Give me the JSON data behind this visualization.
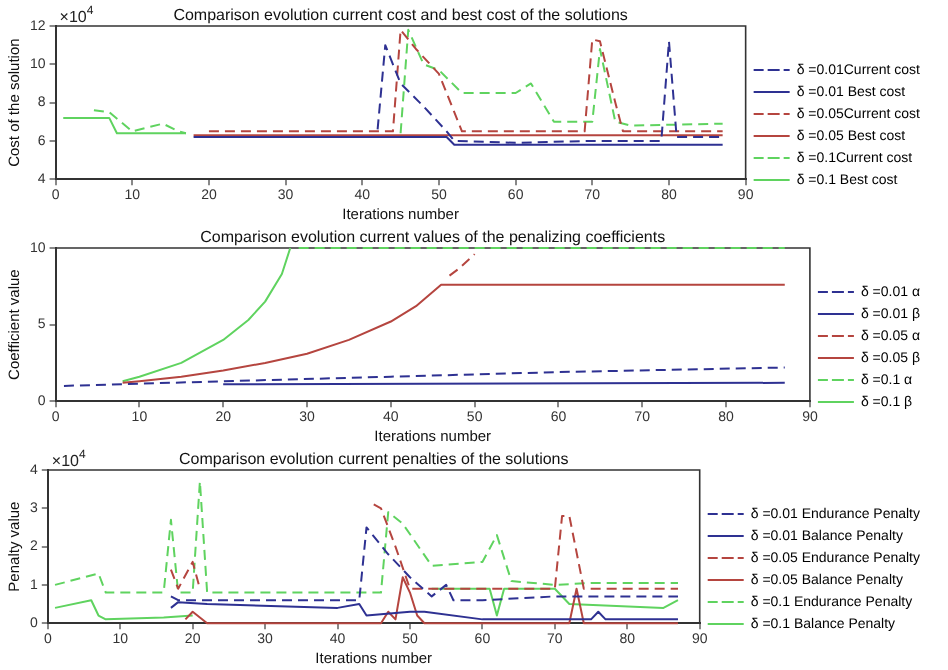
{
  "chart_data": [
    {
      "type": "line",
      "title": "Comparison evolution current cost and best cost of the solutions",
      "xlabel": "Iterations number",
      "ylabel": "Cost of the solution",
      "annotations": [
        "×10$^{4}$"
      ],
      "xlim": [
        0,
        90
      ],
      "xticks": [
        0,
        10,
        20,
        30,
        40,
        50,
        60,
        70,
        80,
        90
      ],
      "ylim": [
        4,
        12
      ],
      "yticks": [
        4,
        6,
        8,
        10,
        12
      ],
      "grid": false,
      "legend": "right",
      "marker": "none",
      "series": [
        {
          "name": "δ =0.01Current cost",
          "color": "#2e3192",
          "line_style": "dashed",
          "x": [
            42,
            43,
            45,
            48,
            51,
            52,
            60,
            70,
            79,
            80,
            81,
            87
          ],
          "values": [
            6.6,
            11.0,
            9.0,
            7.8,
            6.5,
            6.0,
            5.9,
            6.0,
            6.0,
            11.2,
            6.2,
            6.2
          ]
        },
        {
          "name": "δ =0.01 Best cost",
          "color": "#2e3192",
          "line_style": "solid",
          "x": [
            18,
            51,
            52,
            87
          ],
          "values": [
            6.2,
            6.2,
            5.8,
            5.8
          ]
        },
        {
          "name": "δ =0.05Current cost",
          "color": "#b5453f",
          "line_style": "dashed",
          "x": [
            20,
            30,
            44,
            45,
            47,
            50,
            52,
            53,
            69,
            70,
            71,
            73,
            74,
            87
          ],
          "values": [
            6.5,
            6.5,
            6.5,
            11.8,
            10.8,
            9.5,
            7.5,
            6.5,
            6.5,
            11.3,
            11.2,
            8.0,
            6.5,
            6.5
          ]
        },
        {
          "name": "δ =0.05 Best cost",
          "color": "#b5453f",
          "line_style": "solid",
          "x": [
            18,
            87
          ],
          "values": [
            6.3,
            6.3
          ]
        },
        {
          "name": "δ =0.1Current cost",
          "color": "#5fd35f",
          "line_style": "dashed",
          "x": [
            5,
            7,
            10,
            12,
            14,
            16,
            17,
            30,
            45,
            46,
            48,
            50,
            53,
            60,
            62,
            65,
            70,
            71,
            73,
            75,
            87
          ],
          "values": [
            7.6,
            7.5,
            6.5,
            6.7,
            6.9,
            6.5,
            6.4,
            null,
            6.4,
            11.8,
            10.0,
            9.7,
            8.5,
            8.5,
            9.0,
            7.0,
            7.0,
            10.8,
            7.0,
            6.8,
            6.9
          ]
        },
        {
          "name": "δ =0.1 Best cost",
          "color": "#5fd35f",
          "line_style": "solid",
          "x": [
            1,
            7,
            8,
            17
          ],
          "values": [
            7.2,
            7.2,
            6.4,
            6.4
          ]
        }
      ]
    },
    {
      "type": "line",
      "title": "Comparison evolution current values of the penalizing coefficients",
      "xlabel": "Iterations number",
      "ylabel": "Coefficient value",
      "xlim": [
        0,
        90
      ],
      "xticks": [
        0,
        10,
        20,
        30,
        40,
        50,
        60,
        70,
        80,
        90
      ],
      "ylim": [
        0,
        10
      ],
      "yticks": [
        0,
        5,
        10
      ],
      "grid": false,
      "legend": "right",
      "marker": "none",
      "series": [
        {
          "name": "δ =0.01 α",
          "color": "#2e3192",
          "line_style": "dashed",
          "x": [
            1,
            20,
            40,
            60,
            87
          ],
          "values": [
            1.0,
            1.3,
            1.6,
            1.9,
            2.2
          ]
        },
        {
          "name": "δ =0.01 β",
          "color": "#2e3192",
          "line_style": "solid",
          "x": [
            20,
            87
          ],
          "values": [
            1.1,
            1.2
          ]
        },
        {
          "name": "δ =0.05 α",
          "color": "#b5453f",
          "line_style": "dashed",
          "x": [
            47,
            48,
            50
          ],
          "values": [
            8.2,
            8.6,
            9.6
          ]
        },
        {
          "name": "δ =0.05 β",
          "color": "#b5453f",
          "line_style": "solid",
          "x": [
            8,
            10,
            15,
            20,
            25,
            30,
            35,
            40,
            43,
            46,
            87
          ],
          "values": [
            1.2,
            1.3,
            1.6,
            2.0,
            2.5,
            3.1,
            4.0,
            5.2,
            6.2,
            7.6,
            7.6
          ]
        },
        {
          "name": "δ =0.1 α",
          "color": "#5fd35f",
          "line_style": "dashed",
          "x": [
            29,
            87
          ],
          "values": [
            10,
            10
          ]
        },
        {
          "name": "δ =0.1 β",
          "color": "#5fd35f",
          "line_style": "solid",
          "x": [
            8,
            10,
            15,
            20,
            23,
            25,
            27,
            28
          ],
          "values": [
            1.3,
            1.6,
            2.5,
            4.0,
            5.3,
            6.5,
            8.3,
            10.0
          ]
        }
      ]
    },
    {
      "type": "line",
      "title": "Comparison evolution current penalties of the solutions",
      "xlabel": "Iterations number",
      "ylabel": "Penalty value",
      "annotations": [
        "×10$^{4}$"
      ],
      "xlim": [
        0,
        90
      ],
      "xticks": [
        0,
        10,
        20,
        30,
        40,
        50,
        60,
        70,
        80,
        90
      ],
      "ylim": [
        0,
        4
      ],
      "yticks": [
        0,
        1,
        2,
        3,
        4
      ],
      "grid": false,
      "legend": "right",
      "marker": "none",
      "series": [
        {
          "name": "δ =0.01 Endurance Penalty",
          "color": "#2e3192",
          "line_style": "dashed",
          "x": [
            17,
            18,
            22,
            43,
            44,
            47,
            50,
            53,
            55,
            56,
            60,
            70,
            87
          ],
          "values": [
            0.7,
            0.6,
            0.6,
            0.6,
            2.5,
            1.8,
            1.2,
            0.7,
            1.0,
            0.6,
            0.6,
            0.7,
            0.7
          ]
        },
        {
          "name": "δ =0.01 Balance Penalty",
          "color": "#2e3192",
          "line_style": "solid",
          "x": [
            17,
            18,
            22,
            40,
            43,
            44,
            50,
            52,
            60,
            75,
            76,
            77,
            87
          ],
          "values": [
            0.4,
            0.55,
            0.5,
            0.4,
            0.5,
            0.2,
            0.3,
            0.3,
            0.1,
            0.1,
            0.3,
            0.1,
            0.1
          ]
        },
        {
          "name": "δ =0.05 Endurance Penalty",
          "color": "#b5453f",
          "line_style": "dashed",
          "x": [
            17,
            18,
            20,
            21,
            30,
            45,
            46,
            48,
            50,
            70,
            71,
            72,
            74,
            87
          ],
          "values": [
            1.4,
            0.9,
            1.6,
            0.9,
            null,
            3.1,
            3.0,
            2.0,
            0.9,
            0.9,
            2.8,
            2.8,
            0.9,
            0.9
          ]
        },
        {
          "name": "δ =0.05 Balance Penalty",
          "color": "#b5453f",
          "line_style": "solid",
          "x": [
            19,
            20,
            22,
            46,
            47,
            48,
            49,
            50,
            51,
            52,
            72,
            73,
            74,
            87
          ],
          "values": [
            0.1,
            0.3,
            0,
            0,
            0.3,
            0.1,
            1.2,
            0.8,
            0.2,
            0,
            0,
            0.9,
            0,
            0
          ]
        },
        {
          "name": "δ =0.1 Endurance Penalty",
          "color": "#5fd35f",
          "line_style": "dashed",
          "x": [
            1,
            7,
            8,
            16,
            17,
            18,
            20,
            21,
            22,
            46,
            47,
            49,
            53,
            60,
            62,
            64,
            70,
            75,
            87
          ],
          "values": [
            1.0,
            1.3,
            0.8,
            0.8,
            2.7,
            0.8,
            0.8,
            3.7,
            0.8,
            0.8,
            2.9,
            2.6,
            1.5,
            1.6,
            2.3,
            1.1,
            1.0,
            1.05,
            1.05
          ]
        },
        {
          "name": "δ =0.1 Balance Penalty",
          "color": "#5fd35f",
          "line_style": "solid",
          "x": [
            1,
            6,
            7,
            8,
            16,
            20,
            30,
            53,
            61,
            62,
            63,
            70,
            72,
            85,
            87
          ],
          "values": [
            0.4,
            0.6,
            0.2,
            0.1,
            0.15,
            0.2,
            null,
            0.9,
            0.9,
            0.2,
            0.9,
            0.9,
            0.5,
            0.4,
            0.6
          ]
        }
      ]
    }
  ]
}
